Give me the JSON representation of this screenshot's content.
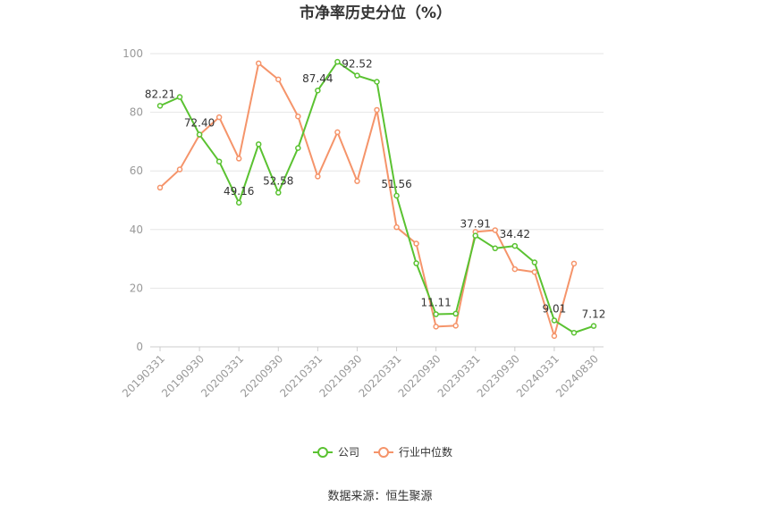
{
  "chart_data": {
    "type": "line",
    "title": "市净率历史分位（%）",
    "xlabel": "",
    "ylabel": "",
    "ylim": [
      0,
      100
    ],
    "yticks": [
      0,
      20,
      40,
      60,
      80,
      100
    ],
    "x": [
      "20190331",
      "20190630",
      "20190930",
      "20191231",
      "20200331",
      "20200630",
      "20200930",
      "20201231",
      "20210331",
      "20210630",
      "20210930",
      "20211231",
      "20220331",
      "20220630",
      "20220930",
      "20221231",
      "20230331",
      "20230630",
      "20230930",
      "20231231",
      "20240331",
      "20240630",
      "20240830"
    ],
    "xtick_labels": [
      "20190331",
      "20190930",
      "20200331",
      "20200930",
      "20210331",
      "20210930",
      "20220331",
      "20220930",
      "20230331",
      "20230930",
      "20240331",
      "20240830"
    ],
    "series": [
      {
        "name": "公司",
        "color": "#5ac231",
        "values": [
          82.21,
          85.2,
          72.4,
          63.2,
          49.16,
          69.1,
          52.58,
          67.8,
          87.44,
          97.2,
          92.52,
          90.4,
          51.56,
          28.5,
          11.11,
          11.3,
          37.91,
          33.6,
          34.42,
          28.8,
          9.01,
          4.8,
          7.12
        ]
      },
      {
        "name": "行业中位数",
        "color": "#f5946a",
        "values": [
          54.3,
          60.5,
          72.3,
          78.3,
          64.2,
          96.7,
          91.2,
          78.6,
          58.1,
          73.2,
          56.5,
          80.8,
          40.8,
          35.2,
          6.9,
          7.2,
          39.2,
          39.8,
          26.5,
          25.5,
          3.7,
          28.4,
          null
        ]
      }
    ],
    "data_labels": [
      {
        "index": 0,
        "text": "82.21"
      },
      {
        "index": 2,
        "text": "72.40"
      },
      {
        "index": 4,
        "text": "49.16"
      },
      {
        "index": 6,
        "text": "52.58"
      },
      {
        "index": 8,
        "text": "87.44"
      },
      {
        "index": 10,
        "text": "92.52"
      },
      {
        "index": 12,
        "text": "51.56"
      },
      {
        "index": 14,
        "text": "11.11"
      },
      {
        "index": 16,
        "text": "37.91"
      },
      {
        "index": 18,
        "text": "34.42"
      },
      {
        "index": 20,
        "text": "9.01"
      },
      {
        "index": 22,
        "text": "7.12"
      }
    ],
    "legend_position": "bottom",
    "grid": true
  },
  "source": "数据来源：恒生聚源"
}
